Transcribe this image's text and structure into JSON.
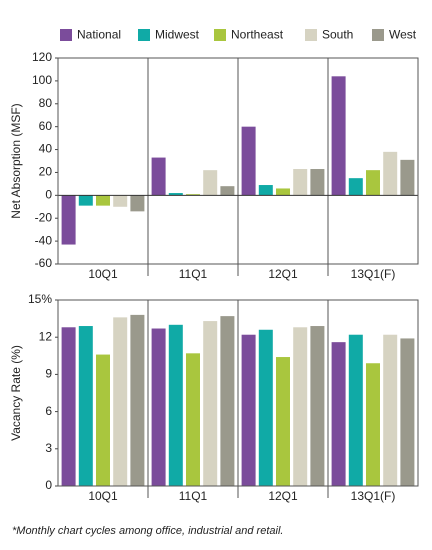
{
  "chart_data": [
    {
      "type": "bar",
      "ylabel": "Net Absorption (MSF)",
      "categories": [
        "10Q1",
        "11Q1",
        "12Q1",
        "13Q1(F)"
      ],
      "series": [
        {
          "name": "National",
          "color": "#7b4c9b",
          "values": [
            -43,
            33,
            60,
            104
          ]
        },
        {
          "name": "Midwest",
          "color": "#10aaa6",
          "values": [
            -9,
            2,
            9,
            15
          ]
        },
        {
          "name": "Northeast",
          "color": "#a9c63e",
          "values": [
            -9,
            1,
            6,
            22
          ]
        },
        {
          "name": "South",
          "color": "#d6d3c2",
          "values": [
            -10,
            22,
            23,
            38
          ]
        },
        {
          "name": "West",
          "color": "#9a998c",
          "values": [
            -14,
            8,
            23,
            31
          ]
        }
      ],
      "ylim": [
        -60,
        120
      ],
      "yticks": [
        -60,
        -40,
        -20,
        0,
        20,
        40,
        60,
        80,
        100,
        120
      ]
    },
    {
      "type": "bar",
      "ylabel": "Vacancy Rate (%)",
      "categories": [
        "10Q1",
        "11Q1",
        "12Q1",
        "13Q1(F)"
      ],
      "series": [
        {
          "name": "National",
          "color": "#7b4c9b",
          "values": [
            12.8,
            12.7,
            12.2,
            11.6
          ]
        },
        {
          "name": "Midwest",
          "color": "#10aaa6",
          "values": [
            12.9,
            13.0,
            12.6,
            12.2
          ]
        },
        {
          "name": "Northeast",
          "color": "#a9c63e",
          "values": [
            10.6,
            10.7,
            10.4,
            9.9
          ]
        },
        {
          "name": "South",
          "color": "#d6d3c2",
          "values": [
            13.6,
            13.3,
            12.8,
            12.2
          ]
        },
        {
          "name": "West",
          "color": "#9a998c",
          "values": [
            13.8,
            13.7,
            12.9,
            11.9
          ]
        }
      ],
      "ylim": [
        0,
        15
      ],
      "yticks": [
        0,
        3,
        6,
        9,
        12,
        {
          "value": 15,
          "label": "15%"
        }
      ]
    }
  ],
  "footnote": "*Monthly chart cycles among office, industrial and retail."
}
